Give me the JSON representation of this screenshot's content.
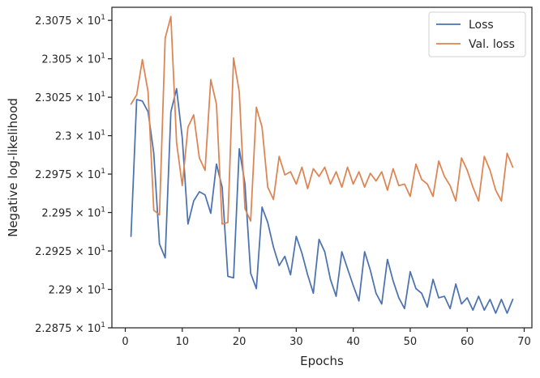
{
  "chart_data": {
    "type": "line",
    "title": "",
    "xlabel": "Epochs",
    "ylabel": "Negative log-likelihood",
    "xlim": [
      -2.35,
      71.35
    ],
    "ylim": [
      22.875,
      23.0835
    ],
    "x_ticks": [
      0,
      10,
      20,
      30,
      40,
      50,
      60,
      70
    ],
    "x_tick_labels": [
      "0",
      "10",
      "20",
      "30",
      "40",
      "50",
      "60",
      "70"
    ],
    "y_ticks": [
      22.875,
      22.9,
      22.925,
      22.95,
      22.975,
      23.0,
      23.025,
      23.05,
      23.075
    ],
    "y_tick_labels": [
      {
        "mantissa": "2.2875",
        "times": "×",
        "base": "10",
        "exp": "1"
      },
      {
        "mantissa": "2.29",
        "times": "×",
        "base": "10",
        "exp": "1"
      },
      {
        "mantissa": "2.2925",
        "times": "×",
        "base": "10",
        "exp": "1"
      },
      {
        "mantissa": "2.295",
        "times": "×",
        "base": "10",
        "exp": "1"
      },
      {
        "mantissa": "2.2975",
        "times": "×",
        "base": "10",
        "exp": "1"
      },
      {
        "mantissa": "2.3",
        "times": "×",
        "base": "10",
        "exp": "1"
      },
      {
        "mantissa": "2.3025",
        "times": "×",
        "base": "10",
        "exp": "1"
      },
      {
        "mantissa": "2.305",
        "times": "×",
        "base": "10",
        "exp": "1"
      },
      {
        "mantissa": "2.3075",
        "times": "×",
        "base": "10",
        "exp": "1"
      }
    ],
    "grid": false,
    "legend_position": "top-right",
    "x": [
      1,
      2,
      3,
      4,
      5,
      6,
      7,
      8,
      9,
      10,
      11,
      12,
      13,
      14,
      15,
      16,
      17,
      18,
      19,
      20,
      21,
      22,
      23,
      24,
      25,
      26,
      27,
      28,
      29,
      30,
      31,
      32,
      33,
      34,
      35,
      36,
      37,
      38,
      39,
      40,
      41,
      42,
      43,
      44,
      45,
      46,
      47,
      48,
      49,
      50,
      51,
      52,
      53,
      54,
      55,
      56,
      57,
      58,
      59,
      60,
      61,
      62,
      63,
      64,
      65,
      66,
      67,
      68
    ],
    "series": [
      {
        "name": "Loss",
        "color": "#4c72b0",
        "values": [
          22.9345,
          23.0235,
          23.0225,
          23.0155,
          22.9885,
          22.9295,
          22.9205,
          23.0155,
          23.0305,
          22.9985,
          22.9425,
          22.9575,
          22.9635,
          22.9615,
          22.9495,
          22.9815,
          22.9665,
          22.9085,
          22.9075,
          22.9915,
          22.9685,
          22.9105,
          22.9005,
          22.9535,
          22.9435,
          22.9275,
          22.9155,
          22.9215,
          22.9095,
          22.9345,
          22.9235,
          22.9095,
          22.8975,
          22.9325,
          22.9245,
          22.9065,
          22.8955,
          22.9245,
          22.9135,
          22.9025,
          22.8925,
          22.9245,
          22.9125,
          22.8975,
          22.8905,
          22.9195,
          22.9055,
          22.8945,
          22.8875,
          22.9115,
          22.9005,
          22.8975,
          22.8885,
          22.9065,
          22.8945,
          22.8955,
          22.8875,
          22.9035,
          22.8905,
          22.8945,
          22.8865,
          22.8955,
          22.8865,
          22.8935,
          22.8845,
          22.8935,
          22.8845,
          22.8935
        ]
      },
      {
        "name": "Val. loss",
        "color": "#dd8452",
        "values": [
          23.0205,
          23.0265,
          23.0495,
          23.0285,
          22.9515,
          22.9485,
          23.0635,
          23.0775,
          22.9955,
          22.9675,
          23.0055,
          23.0135,
          22.9855,
          22.9775,
          23.0365,
          23.0205,
          22.9425,
          22.9435,
          23.0505,
          23.0285,
          22.9525,
          22.9445,
          23.0185,
          23.0055,
          22.9665,
          22.9585,
          22.9865,
          22.9745,
          22.9765,
          22.9685,
          22.9795,
          22.9655,
          22.9785,
          22.9735,
          22.9795,
          22.9685,
          22.9765,
          22.9665,
          22.9795,
          22.9685,
          22.9765,
          22.9665,
          22.9755,
          22.9705,
          22.9765,
          22.9645,
          22.9785,
          22.9675,
          22.9685,
          22.9605,
          22.9815,
          22.9715,
          22.9685,
          22.9605,
          22.9835,
          22.9735,
          22.9675,
          22.9575,
          22.9855,
          22.9775,
          22.9665,
          22.9575,
          22.9865,
          22.9775,
          22.9645,
          22.9575,
          22.9885,
          22.9795
        ]
      }
    ]
  }
}
